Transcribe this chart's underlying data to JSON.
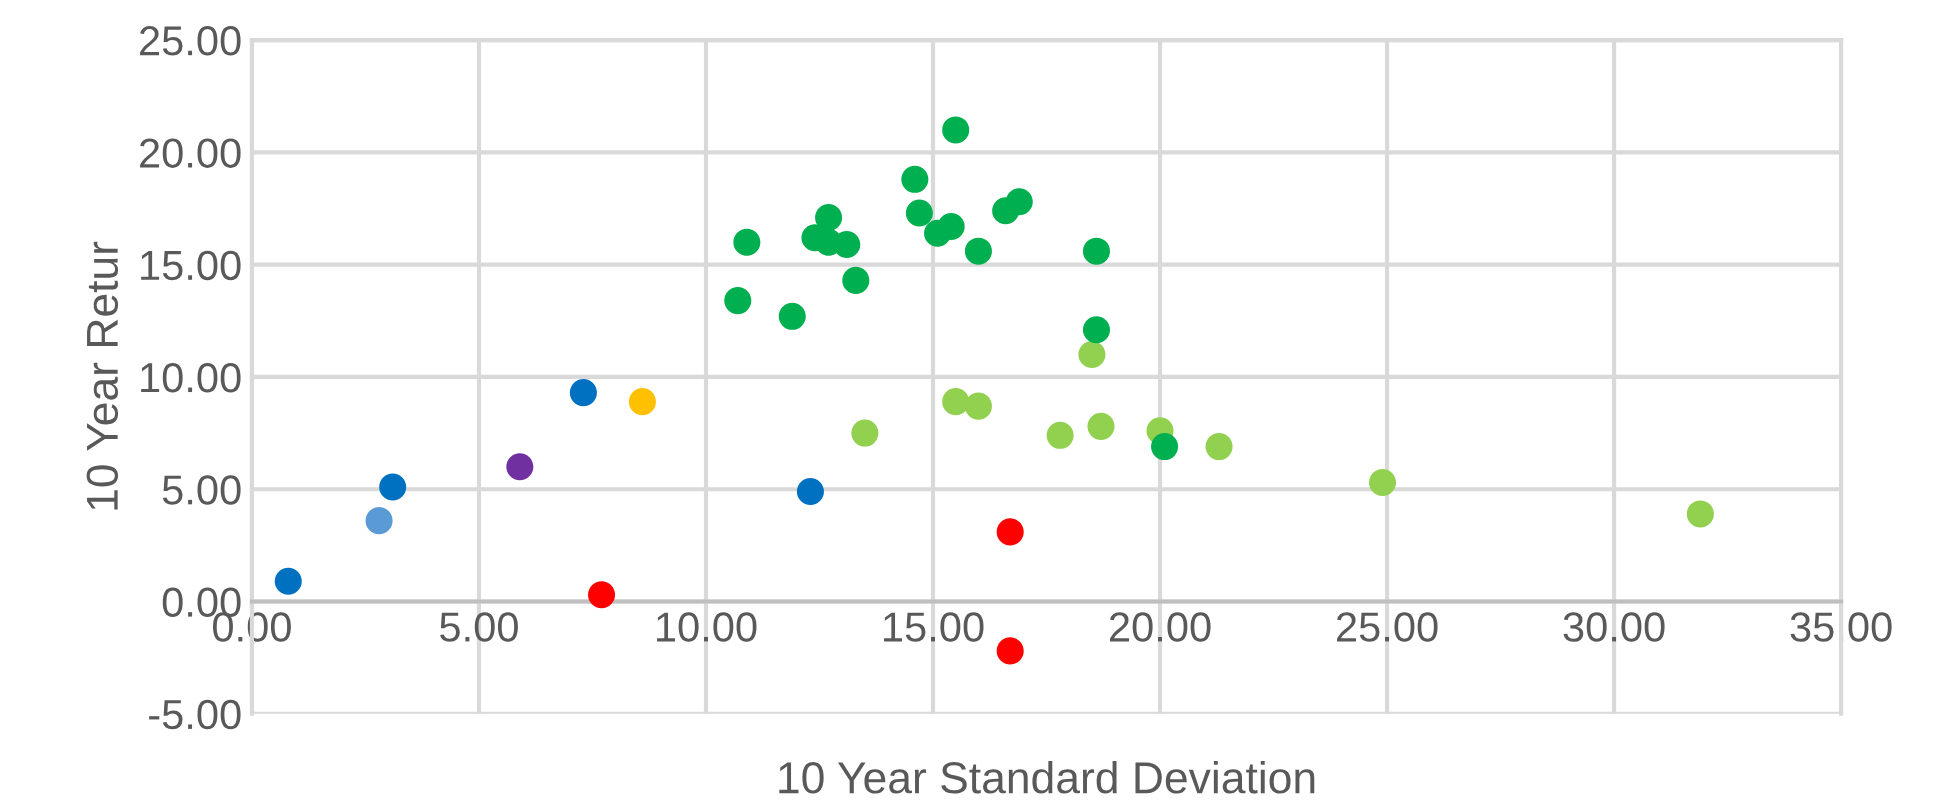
{
  "chart_data": {
    "type": "scatter",
    "xlabel": "10 Year Standard Deviation",
    "ylabel": "10 Year Retur",
    "xlim": [
      0,
      35
    ],
    "ylim": [
      -5,
      25
    ],
    "xticks": [
      {
        "value": 0,
        "label": "0.00"
      },
      {
        "value": 5,
        "label": "5.00"
      },
      {
        "value": 10,
        "label": "10.00"
      },
      {
        "value": 15,
        "label": "15.00"
      },
      {
        "value": 20,
        "label": "20.00"
      },
      {
        "value": 25,
        "label": "25.00"
      },
      {
        "value": 30,
        "label": "30.00"
      },
      {
        "value": 35,
        "label": "35.00"
      }
    ],
    "yticks": [
      {
        "value": -5,
        "label": "-5.00"
      },
      {
        "value": 0,
        "label": "0.00"
      },
      {
        "value": 5,
        "label": "5.00"
      },
      {
        "value": 10,
        "label": "10.00"
      },
      {
        "value": 15,
        "label": "15.00"
      },
      {
        "value": 20,
        "label": "20.00"
      },
      {
        "value": 25,
        "label": "25.00"
      }
    ],
    "grid": true,
    "marker": "circle",
    "series": [
      {
        "color": "#0070c0",
        "x": [
          0.8,
          3.1,
          7.3,
          12.3
        ],
        "values": [
          0.9,
          5.1,
          9.3,
          4.9
        ]
      },
      {
        "color": "#5b9bd5",
        "x": [
          2.8
        ],
        "values": [
          3.6
        ]
      },
      {
        "color": "#7030a0",
        "x": [
          5.9
        ],
        "values": [
          6.0
        ]
      },
      {
        "color": "#ffc000",
        "x": [
          8.6
        ],
        "values": [
          8.9
        ]
      },
      {
        "color": "#ff0000",
        "x": [
          7.7,
          16.7,
          16.7
        ],
        "values": [
          0.3,
          3.1,
          -2.2
        ]
      },
      {
        "color": "#92d050",
        "x": [
          18.5,
          13.5,
          15.5,
          16.0,
          17.8,
          18.7,
          20.0,
          21.3,
          24.9,
          31.9
        ],
        "values": [
          11.0,
          7.5,
          8.9,
          8.7,
          7.4,
          7.8,
          7.6,
          6.9,
          5.3,
          3.9
        ]
      },
      {
        "color": "#00b050",
        "x": [
          10.7,
          10.9,
          11.9,
          15.5,
          14.6,
          14.7,
          12.7,
          12.4,
          12.7,
          13.1,
          13.3,
          15.1,
          15.4,
          16.0,
          16.6,
          16.9,
          18.6,
          18.6,
          20.1
        ],
        "values": [
          13.4,
          16.0,
          12.7,
          21.0,
          18.8,
          17.3,
          17.1,
          16.2,
          16.0,
          15.9,
          14.3,
          16.4,
          16.7,
          15.6,
          17.4,
          17.8,
          15.6,
          12.1,
          6.9
        ]
      }
    ]
  }
}
